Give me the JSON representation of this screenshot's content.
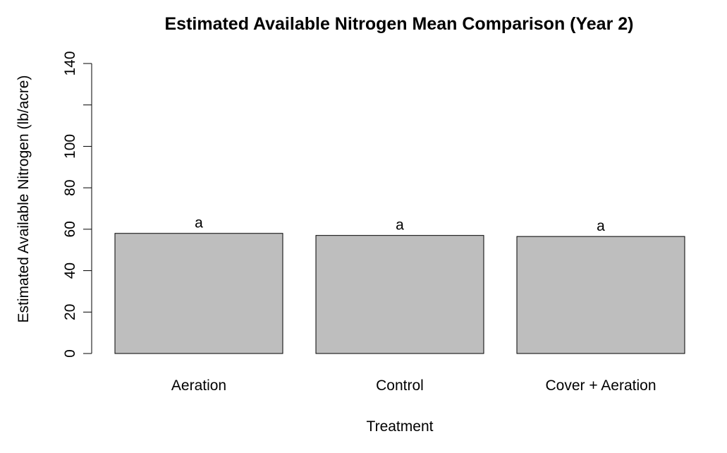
{
  "chart_data": {
    "type": "bar",
    "title": "Estimated Available Nitrogen Mean Comparison (Year 2)",
    "xlabel": "Treatment",
    "ylabel": "Estimated Available Nitrogen (lb/acre)",
    "categories": [
      "Aeration",
      "Control",
      "Cover + Aeration"
    ],
    "values": [
      58,
      57,
      56.5
    ],
    "group_letters": [
      "a",
      "a",
      "a"
    ],
    "ylim": [
      0,
      140
    ],
    "y_ticks": [
      0,
      20,
      40,
      60,
      80,
      100,
      120,
      140
    ],
    "y_tick_labels": [
      "0",
      "20",
      "40",
      "60",
      "80",
      "100",
      "",
      "140"
    ],
    "bar_fill": "#bebebe",
    "bar_stroke": "#000000",
    "grid": false,
    "legend": "none"
  }
}
